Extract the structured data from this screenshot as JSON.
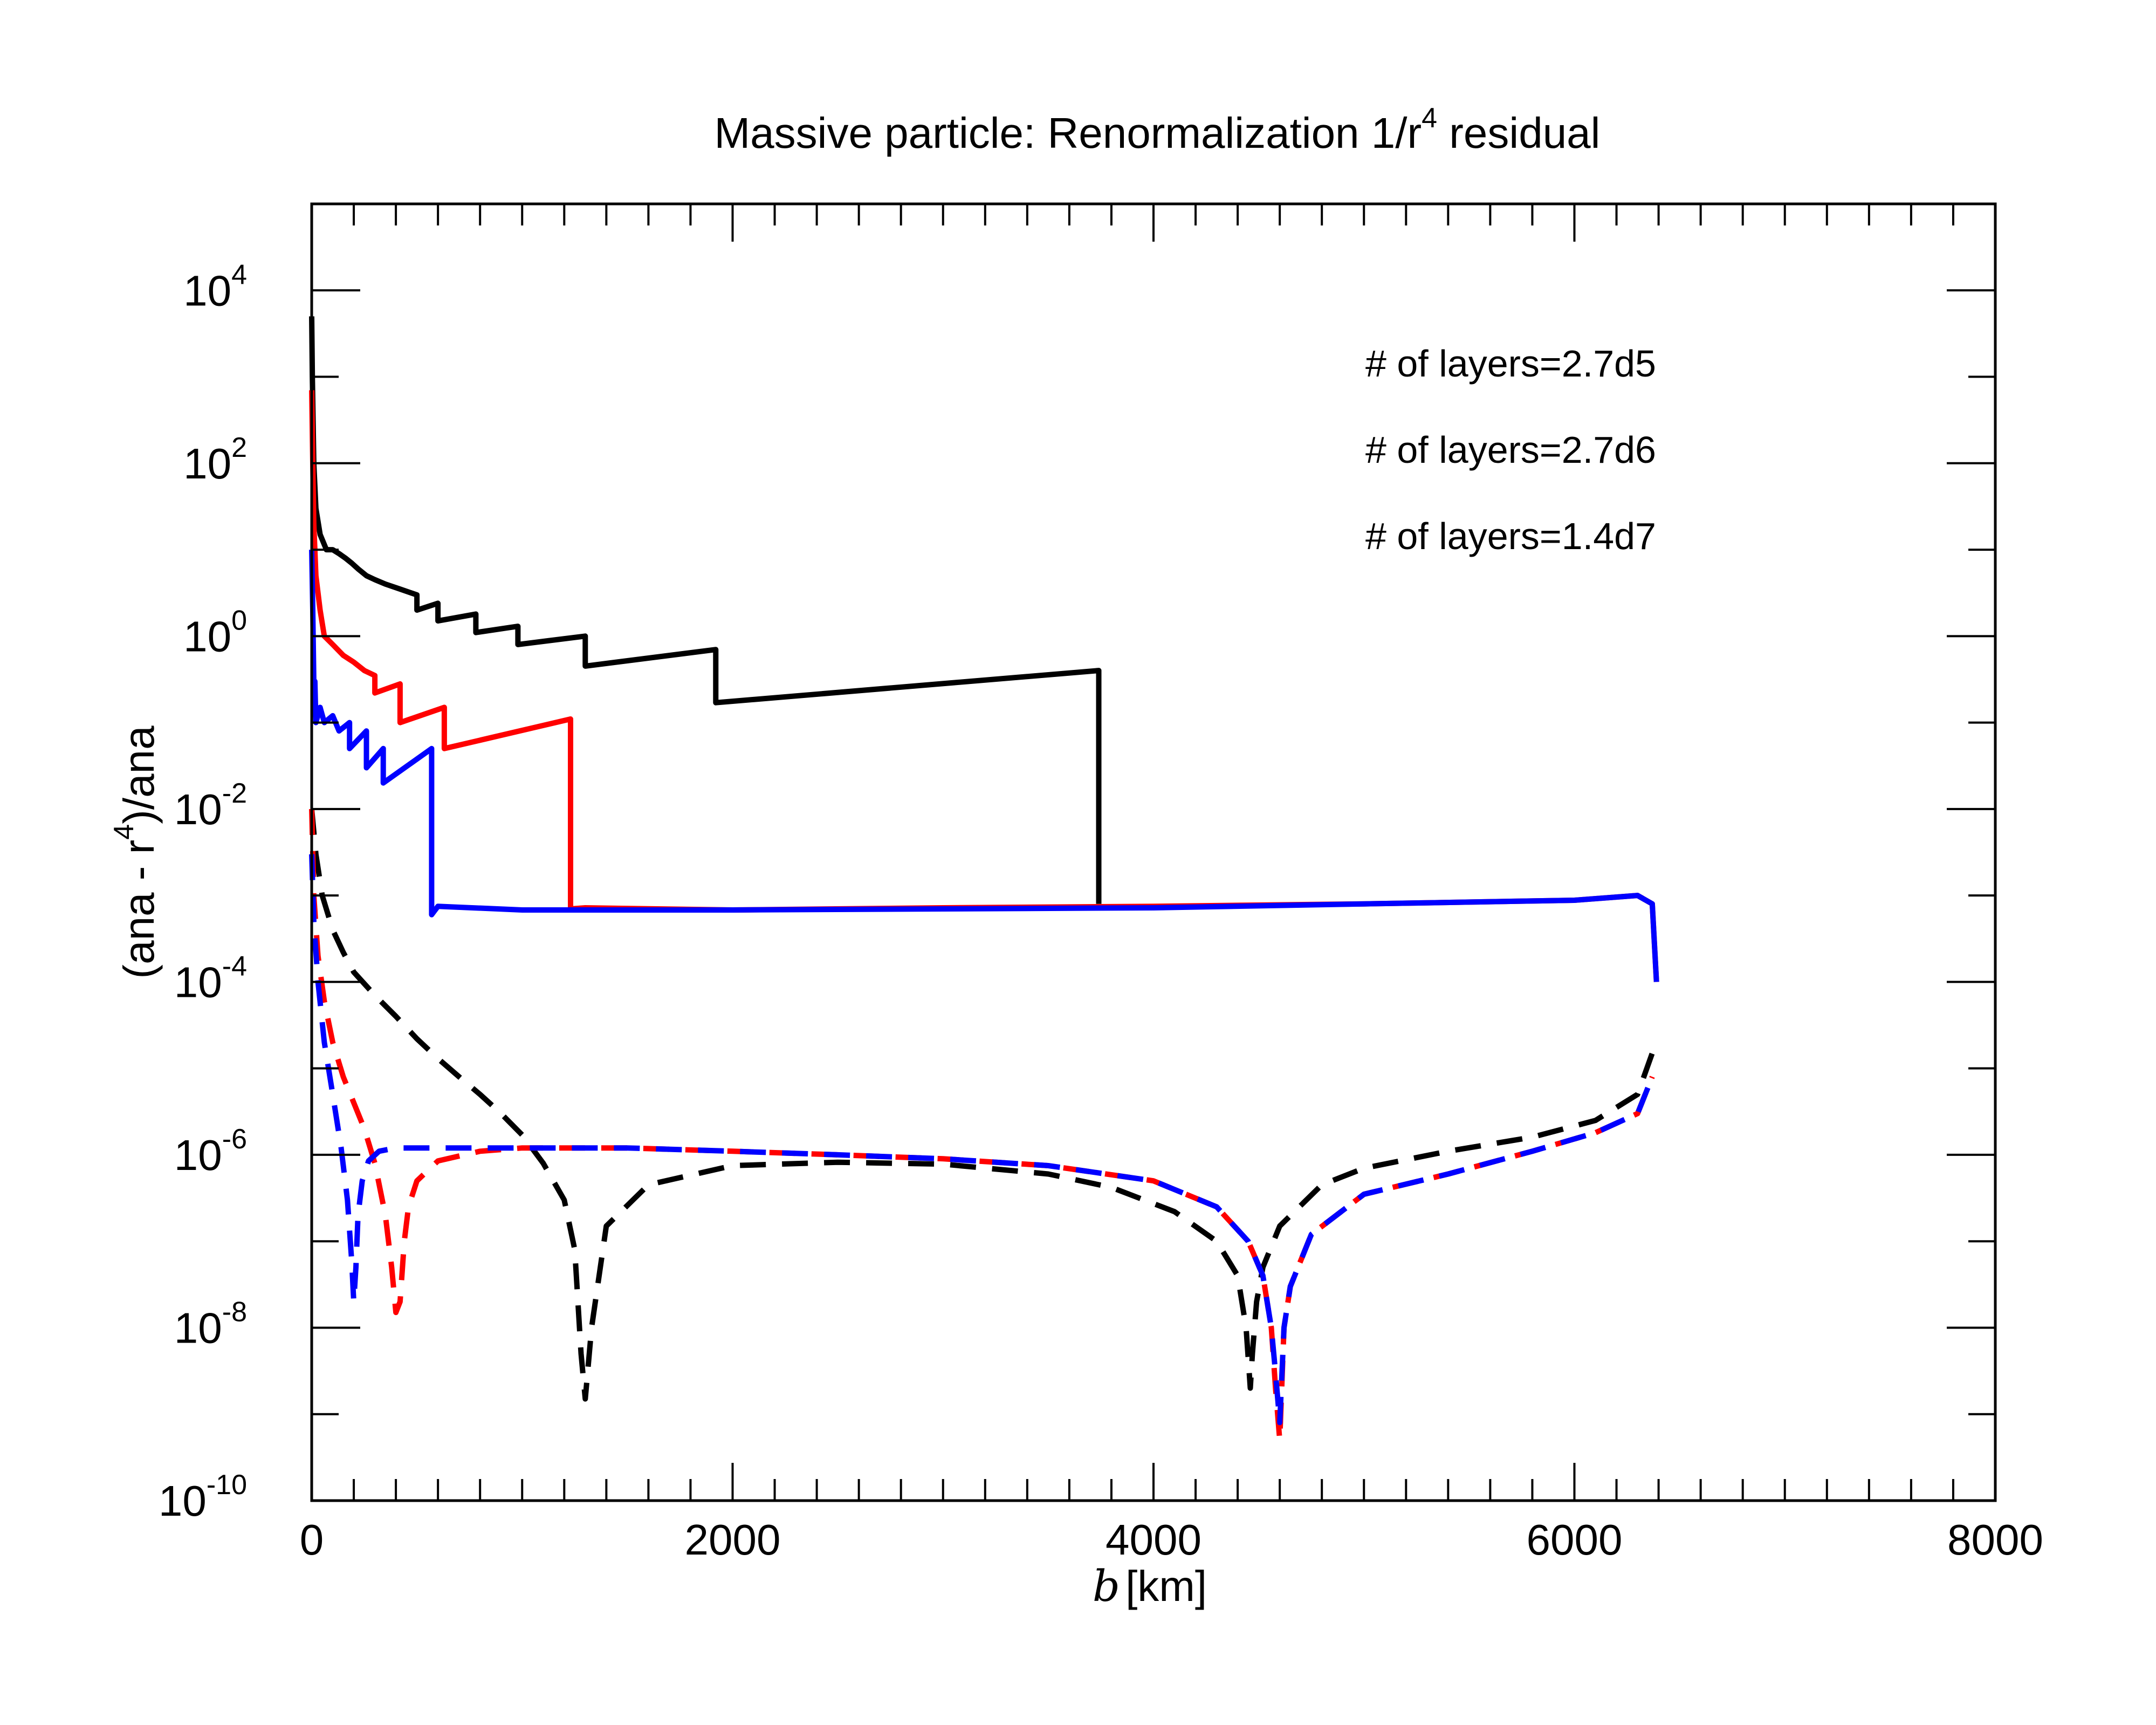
{
  "chart_data": {
    "type": "line",
    "title": "Massive particle: Renormalization 1/r",
    "title_sup": "4",
    "title_tail": " residual",
    "xlabel": {
      "var": "b",
      "unit": "[km]"
    },
    "ylabel": {
      "pre": "(ana - r",
      "sup": "4",
      "post": ")/ana"
    },
    "xlim": [
      0,
      8000
    ],
    "ylim": [
      1e-10,
      100000.0
    ],
    "yscale": "log",
    "x_ticks": [
      {
        "value": 0,
        "label": "0"
      },
      {
        "value": 2000,
        "label": "2000"
      },
      {
        "value": 4000,
        "label": "4000"
      },
      {
        "value": 6000,
        "label": "6000"
      },
      {
        "value": 8000,
        "label": "8000"
      }
    ],
    "y_ticks": [
      {
        "value": 1e-10,
        "base": "10",
        "exp": "-10"
      },
      {
        "value": 1e-08,
        "base": "10",
        "exp": "-8"
      },
      {
        "value": 1e-06,
        "base": "10",
        "exp": "-6"
      },
      {
        "value": 0.0001,
        "base": "10",
        "exp": "-4"
      },
      {
        "value": 0.01,
        "base": "10",
        "exp": "-2"
      },
      {
        "value": 1,
        "base": "10",
        "exp": "0"
      },
      {
        "value": 100,
        "base": "10",
        "exp": "2"
      },
      {
        "value": 10000,
        "base": "10",
        "exp": "4"
      }
    ],
    "legend": [
      {
        "label": "# of layers=2.7d5",
        "color": "#000000"
      },
      {
        "label": "# of layers=2.7d6",
        "color": "#ff0000"
      },
      {
        "label": "# of layers=1.4d7",
        "color": "#0000ff"
      }
    ],
    "series": [
      {
        "name": "2.7d5 solid",
        "color": "#000000",
        "dash": false,
        "x": [
          0,
          3,
          10,
          20,
          40,
          70,
          100,
          130,
          160,
          190,
          220,
          260,
          300,
          350,
          420,
          500,
          500,
          600,
          600,
          780,
          780,
          980,
          980,
          1300,
          1300,
          1920,
          1920,
          3740,
          3740
        ],
        "y": [
          5000,
          1000,
          100,
          30,
          15,
          10,
          10,
          9,
          8,
          7,
          6,
          5,
          4.5,
          4,
          3.5,
          3,
          2,
          2.4,
          1.5,
          1.8,
          1.1,
          1.3,
          0.8,
          1.0,
          0.45,
          0.7,
          0.17,
          0.4,
          0.0008
        ]
      },
      {
        "name": "2.7d6 solid",
        "color": "#ff0000",
        "dash": false,
        "x": [
          0,
          5,
          10,
          20,
          40,
          60,
          100,
          150,
          200,
          250,
          300,
          300,
          420,
          420,
          630,
          630,
          1230,
          1230,
          1300,
          2000,
          3000,
          4000,
          5000,
          6000,
          6300,
          6370,
          6390
        ],
        "y": [
          700,
          100,
          20,
          5,
          2,
          1,
          0.8,
          0.6,
          0.5,
          0.4,
          0.35,
          0.22,
          0.28,
          0.1,
          0.15,
          0.05,
          0.11,
          0.0007,
          0.00072,
          0.00068,
          0.00072,
          0.00075,
          0.0008,
          0.00088,
          0.001,
          0.0008,
          0.0001
        ]
      },
      {
        "name": "1.4d7 solid",
        "color": "#0000ff",
        "dash": false,
        "x": [
          0,
          5,
          10,
          15,
          20,
          40,
          60,
          100,
          130,
          180,
          180,
          260,
          260,
          340,
          340,
          570,
          570,
          600,
          1000,
          2000,
          3000,
          4000,
          5000,
          6000,
          6300,
          6370,
          6390
        ],
        "y": [
          10,
          2,
          0.3,
          0.3,
          0.1,
          0.15,
          0.1,
          0.12,
          0.08,
          0.1,
          0.05,
          0.08,
          0.03,
          0.05,
          0.02,
          0.05,
          0.0006,
          0.00075,
          0.00068,
          0.00068,
          0.0007,
          0.00072,
          0.0008,
          0.00088,
          0.001,
          0.0008,
          0.0001
        ]
      },
      {
        "name": "2.7d5 dashed",
        "color": "#000000",
        "dash": true,
        "x": [
          0,
          20,
          50,
          100,
          150,
          200,
          300,
          400,
          500,
          600,
          700,
          800,
          900,
          1000,
          1100,
          1200,
          1250,
          1280,
          1300,
          1330,
          1400,
          1600,
          2000,
          2500,
          3000,
          3500,
          3800,
          4100,
          4300,
          4400,
          4440,
          4460,
          4470,
          4490,
          4520,
          4600,
          4800,
          5000,
          5400,
          5800,
          6100,
          6300,
          6370
        ],
        "y": [
          0.01,
          0.003,
          0.001,
          0.0004,
          0.00022,
          0.00013,
          7e-05,
          4e-05,
          2.2e-05,
          1.3e-05,
          8e-06,
          5e-06,
          3e-06,
          1.7e-06,
          8e-07,
          3e-07,
          8e-08,
          5e-09,
          1.5e-09,
          1e-08,
          1.5e-07,
          4.5e-07,
          7.5e-07,
          8.2e-07,
          7.8e-07,
          6e-07,
          4.2e-07,
          2.2e-07,
          1e-07,
          4e-08,
          1e-08,
          2e-09,
          5e-09,
          2e-08,
          5e-08,
          1.5e-07,
          4.5e-07,
          7e-07,
          1.1e-06,
          1.6e-06,
          2.5e-06,
          5e-06,
          1.5e-05
        ]
      },
      {
        "name": "2.7d6 dashed",
        "color": "#ff0000",
        "dash": true,
        "x": [
          0,
          10,
          30,
          60,
          100,
          150,
          200,
          250,
          300,
          350,
          380,
          400,
          420,
          440,
          460,
          500,
          600,
          800,
          1000,
          1500,
          2000,
          2500,
          3000,
          3500,
          4000,
          4300,
          4450,
          4520,
          4560,
          4580,
          4600,
          4620,
          4650,
          4750,
          5000,
          5400,
          5800,
          6100,
          6300,
          6370
        ],
        "y": [
          0.01,
          0.001,
          0.0002,
          6e-05,
          2e-05,
          8e-06,
          4e-06,
          2e-06,
          8e-07,
          2e-07,
          5e-08,
          1.5e-08,
          2e-08,
          1e-07,
          2.5e-07,
          5e-07,
          8.5e-07,
          1.1e-06,
          1.2e-06,
          1.2e-06,
          1.1e-06,
          1e-06,
          9e-07,
          7.5e-07,
          5e-07,
          2.5e-07,
          1e-07,
          4e-08,
          1e-08,
          2e-09,
          5e-10,
          1e-08,
          3e-08,
          1.2e-07,
          3.5e-07,
          6e-07,
          1.1e-06,
          1.8e-06,
          3e-06,
          8e-06
        ]
      },
      {
        "name": "1.4d7 dashed",
        "color": "#0000ff",
        "dash": true,
        "x": [
          0,
          10,
          30,
          60,
          100,
          140,
          170,
          190,
          200,
          210,
          220,
          240,
          270,
          320,
          400,
          600,
          800,
          1000,
          1500,
          2000,
          2500,
          3000,
          3500,
          4000,
          4300,
          4450,
          4520,
          4560,
          4580,
          4600,
          4620,
          4650,
          4750,
          5000,
          5400,
          5800,
          6100,
          6300,
          6370
        ],
        "y": [
          0.003,
          0.0005,
          0.0001,
          2e-05,
          5e-06,
          1.2e-06,
          3e-07,
          6e-08,
          2e-08,
          5e-08,
          2e-07,
          5e-07,
          8.5e-07,
          1.1e-06,
          1.2e-06,
          1.2e-06,
          1.2e-06,
          1.2e-06,
          1.2e-06,
          1.1e-06,
          1e-06,
          9e-07,
          7.5e-07,
          5e-07,
          2.5e-07,
          1e-07,
          4e-08,
          1e-08,
          3e-09,
          8e-10,
          1e-08,
          3e-08,
          1.2e-07,
          3.5e-07,
          6e-07,
          1.1e-06,
          1.8e-06,
          3e-06,
          8e-06
        ]
      }
    ]
  }
}
